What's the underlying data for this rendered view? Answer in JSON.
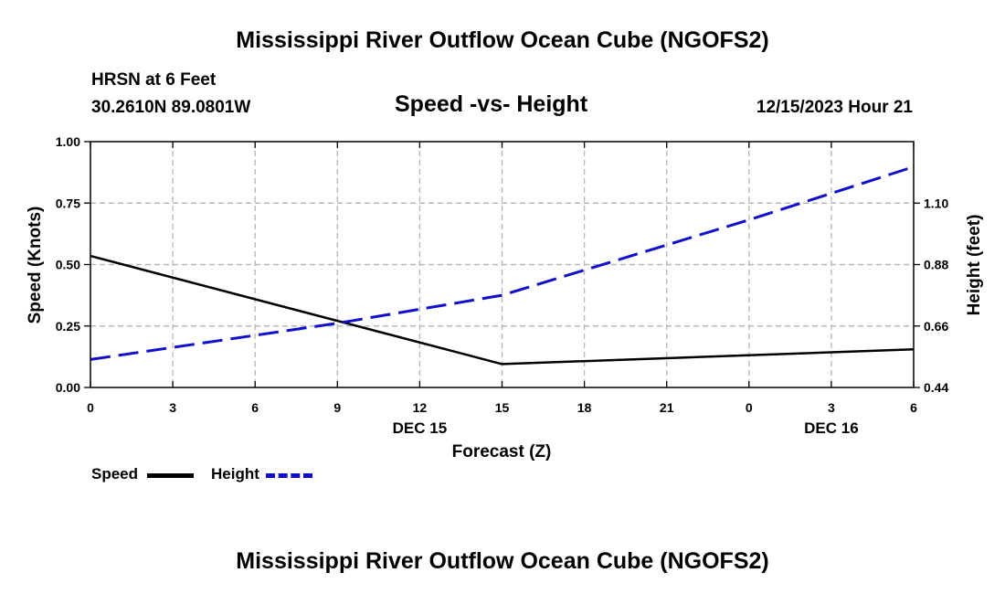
{
  "header": {
    "title_top": "Mississippi River Outflow Ocean Cube (NGOFS2)",
    "title_bottom": "Mississippi River Outflow Ocean Cube (NGOFS2)",
    "station": "HRSN at 6 Feet",
    "location": "30.2610N  89.0801W",
    "datetime": "12/15/2023 Hour 21"
  },
  "legend": {
    "speed_label": "Speed",
    "height_label": "Height"
  },
  "colors": {
    "speed": "#000000",
    "height": "#1010cc",
    "grid": "#b5b5b5"
  },
  "chart_data": {
    "type": "line",
    "title": "Speed -vs- Height",
    "xlabel": "Forecast (Z)",
    "ylabel": "Speed (Knots)",
    "y2label": "Height (feet)",
    "x_ticks": [
      "0",
      "3",
      "6",
      "9",
      "12",
      "15",
      "18",
      "21",
      "0",
      "3",
      "6"
    ],
    "x_day_labels": [
      {
        "tick_index": 4,
        "label": "DEC 15"
      },
      {
        "tick_index": 9,
        "label": "DEC 16"
      }
    ],
    "xlim": [
      0,
      30
    ],
    "ylim": [
      0,
      1
    ],
    "y_ticks": [
      "0.00",
      "0.25",
      "0.50",
      "0.75",
      "1.00"
    ],
    "y_tick_values": [
      0,
      0.25,
      0.5,
      0.75,
      1.0
    ],
    "y2lim": [
      0.44,
      1.32
    ],
    "y2_ticks": [
      "0.44",
      "0.66",
      "0.88",
      "1.10"
    ],
    "y2_tick_values": [
      0.44,
      0.66,
      0.88,
      1.1
    ],
    "series": [
      {
        "name": "Speed",
        "axis": "left",
        "style": "solid",
        "x": [
          0,
          15,
          30
        ],
        "values": [
          0.535,
          0.095,
          0.155
        ]
      },
      {
        "name": "Height",
        "axis": "right",
        "style": "dashed",
        "x": [
          0,
          9,
          15,
          18,
          24,
          30
        ],
        "values": [
          0.54,
          0.67,
          0.77,
          0.86,
          1.04,
          1.23
        ]
      }
    ]
  }
}
